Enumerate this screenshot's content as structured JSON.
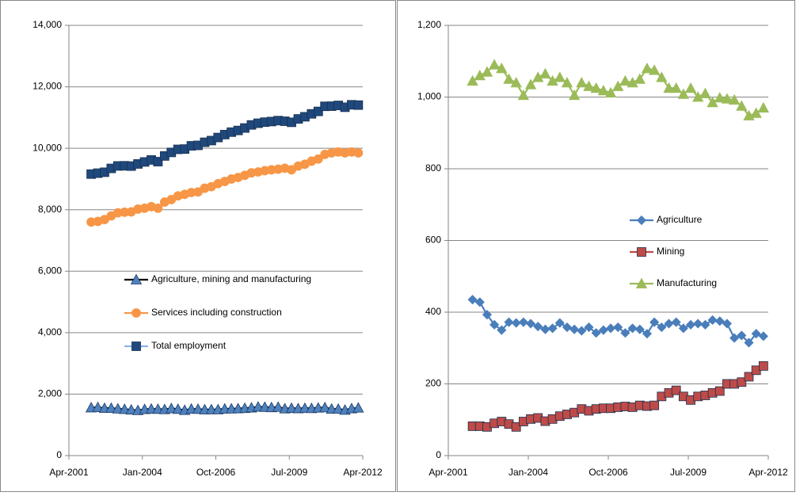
{
  "chart_data": [
    {
      "type": "line",
      "x": [
        "Feb-2002",
        "May-2002",
        "Aug-2002",
        "Nov-2002",
        "Feb-2003",
        "May-2003",
        "Aug-2003",
        "Nov-2003",
        "Feb-2004",
        "May-2004",
        "Aug-2004",
        "Nov-2004",
        "Feb-2005",
        "May-2005",
        "Aug-2005",
        "Nov-2005",
        "Feb-2006",
        "May-2006",
        "Aug-2006",
        "Nov-2006",
        "Feb-2007",
        "May-2007",
        "Aug-2007",
        "Nov-2007",
        "Feb-2008",
        "May-2008",
        "Aug-2008",
        "Nov-2008",
        "Feb-2009",
        "May-2009",
        "Aug-2009",
        "Nov-2009",
        "Feb-2010",
        "May-2010",
        "Aug-2010",
        "Nov-2010",
        "Feb-2011",
        "May-2011",
        "Aug-2011",
        "Nov-2011",
        "Feb-2012"
      ],
      "xlim": [
        "Apr-2001",
        "Apr-2012"
      ],
      "xticks": [
        "Apr-2001",
        "Jan-2004",
        "Oct-2006",
        "Jul-2009",
        "Apr-2012"
      ],
      "ylim": [
        0,
        14000
      ],
      "yticks": [
        0,
        {
          "value": 2000,
          "label": "2,000"
        },
        {
          "value": 4000,
          "label": "4,000"
        },
        {
          "value": 6000,
          "label": "6,000"
        },
        {
          "value": 8000,
          "label": "8,000"
        },
        {
          "value": 10000,
          "label": "10,000"
        },
        {
          "value": 12000,
          "label": "12,000"
        },
        {
          "value": 14000,
          "label": "14,000"
        }
      ],
      "grid": true,
      "legend": "center",
      "series": [
        {
          "name": "Agriculture, mining and manufacturing",
          "color": "#000000",
          "marker": "triangle",
          "marker_color": "#4f81bd",
          "values": [
            1562,
            1570,
            1543,
            1545,
            1525,
            1510,
            1490,
            1472,
            1505,
            1520,
            1513,
            1502,
            1535,
            1513,
            1477,
            1518,
            1513,
            1497,
            1500,
            1499,
            1523,
            1524,
            1530,
            1542,
            1558,
            1587,
            1578,
            1568,
            1579,
            1528,
            1545,
            1533,
            1543,
            1538,
            1553,
            1563,
            1520,
            1515,
            1483,
            1533,
            1553
          ]
        },
        {
          "name": "Services including construction",
          "color": "#f79646",
          "marker": "circle",
          "marker_color": "#f79646",
          "values": [
            7600,
            7620,
            7680,
            7800,
            7900,
            7920,
            7930,
            8020,
            8050,
            8100,
            8050,
            8250,
            8330,
            8450,
            8500,
            8560,
            8580,
            8700,
            8750,
            8850,
            8920,
            9000,
            9050,
            9120,
            9200,
            9230,
            9270,
            9300,
            9320,
            9350,
            9300,
            9420,
            9480,
            9580,
            9650,
            9800,
            9850,
            9880,
            9850,
            9880,
            9850
          ]
        },
        {
          "name": "Total employment",
          "color": "#8db3e2",
          "marker": "square",
          "marker_color": "#1f497d",
          "values": [
            9160,
            9190,
            9220,
            9345,
            9425,
            9430,
            9420,
            9490,
            9555,
            9620,
            9565,
            9750,
            9865,
            9965,
            9975,
            10080,
            10095,
            10195,
            10250,
            10350,
            10445,
            10525,
            10580,
            10660,
            10760,
            10815,
            10850,
            10870,
            10900,
            10880,
            10845,
            10955,
            11025,
            11120,
            11200,
            11365,
            11370,
            11395,
            11335,
            11415,
            11405
          ]
        }
      ]
    },
    {
      "type": "line",
      "x": [
        "Feb-2002",
        "May-2002",
        "Aug-2002",
        "Nov-2002",
        "Feb-2003",
        "May-2003",
        "Aug-2003",
        "Nov-2003",
        "Feb-2004",
        "May-2004",
        "Aug-2004",
        "Nov-2004",
        "Feb-2005",
        "May-2005",
        "Aug-2005",
        "Nov-2005",
        "Feb-2006",
        "May-2006",
        "Aug-2006",
        "Nov-2006",
        "Feb-2007",
        "May-2007",
        "Aug-2007",
        "Nov-2007",
        "Feb-2008",
        "May-2008",
        "Aug-2008",
        "Nov-2008",
        "Feb-2009",
        "May-2009",
        "Aug-2009",
        "Nov-2009",
        "Feb-2010",
        "May-2010",
        "Aug-2010",
        "Nov-2010",
        "Feb-2011",
        "May-2011",
        "Aug-2011",
        "Nov-2011",
        "Feb-2012"
      ],
      "xlim": [
        "Apr-2001",
        "Apr-2012"
      ],
      "xticks": [
        "Apr-2001",
        "Jan-2004",
        "Oct-2006",
        "Jul-2009",
        "Apr-2012"
      ],
      "ylim": [
        0,
        1200
      ],
      "yticks": [
        0,
        200,
        400,
        600,
        800,
        {
          "value": 1000,
          "label": "1,000"
        },
        {
          "value": 1200,
          "label": "1,200"
        }
      ],
      "grid": true,
      "legend": "right",
      "series": [
        {
          "name": "Agriculture",
          "color": "#4a7ebb",
          "marker": "diamond",
          "marker_color": "#4a7ebb",
          "values": [
            435,
            428,
            393,
            365,
            350,
            372,
            370,
            372,
            368,
            360,
            352,
            355,
            370,
            358,
            352,
            348,
            358,
            342,
            350,
            355,
            358,
            342,
            355,
            352,
            340,
            372,
            358,
            368,
            372,
            355,
            365,
            368,
            365,
            378,
            375,
            368,
            328,
            335,
            315,
            340,
            333
          ]
        },
        {
          "name": "Mining",
          "color": "#be4b48",
          "marker": "square",
          "marker_color": "#be4b48",
          "values": [
            82,
            82,
            80,
            90,
            95,
            88,
            80,
            95,
            102,
            105,
            96,
            102,
            110,
            115,
            120,
            130,
            125,
            130,
            132,
            132,
            135,
            137,
            135,
            140,
            138,
            140,
            165,
            175,
            182,
            165,
            155,
            165,
            168,
            175,
            180,
            200,
            200,
            205,
            220,
            238,
            250
          ]
        },
        {
          "name": "Manufacturing",
          "color": "#9bbb59",
          "marker": "triangle",
          "marker_color": "#9bbb59",
          "values": [
            1045,
            1060,
            1070,
            1090,
            1080,
            1050,
            1040,
            1005,
            1035,
            1055,
            1065,
            1045,
            1055,
            1040,
            1005,
            1040,
            1030,
            1025,
            1018,
            1012,
            1030,
            1045,
            1040,
            1050,
            1080,
            1075,
            1055,
            1025,
            1025,
            1008,
            1025,
            1000,
            1010,
            985,
            998,
            995,
            992,
            975,
            948,
            955,
            970
          ]
        }
      ]
    }
  ]
}
